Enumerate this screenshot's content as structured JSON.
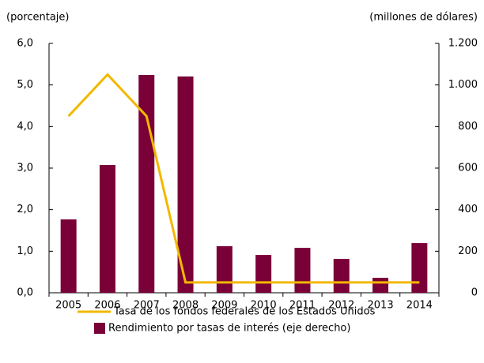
{
  "chart_data": {
    "type": "bar_line",
    "y_label": "(porcentaje)",
    "y2_label": "(millones de dólares)",
    "categories": [
      "2005",
      "2006",
      "2007",
      "2008",
      "2009",
      "2010",
      "2011",
      "2012",
      "2013",
      "2014"
    ],
    "series": [
      {
        "name": "Tasa de los fondos federales de los Estados Unidos",
        "type": "line",
        "color": "#f2b800",
        "axis": "y",
        "values": [
          4.25,
          5.25,
          4.25,
          0.25,
          0.25,
          0.25,
          0.25,
          0.25,
          0.25,
          0.25
        ]
      },
      {
        "name": "Rendimiento por tasas de interés (eje derecho)",
        "type": "bar",
        "color": "#7a0038",
        "axis": "y2",
        "values": [
          353,
          615,
          1048,
          1041,
          224,
          182,
          216,
          163,
          72,
          239
        ]
      }
    ],
    "ylim": [
      0,
      6
    ],
    "yticks": [
      {
        "value": 0,
        "label": "0,0"
      },
      {
        "value": 1,
        "label": "1,0"
      },
      {
        "value": 2,
        "label": "2,0"
      },
      {
        "value": 3,
        "label": "3,0"
      },
      {
        "value": 4,
        "label": "4,0"
      },
      {
        "value": 5,
        "label": "5,0"
      },
      {
        "value": 6,
        "label": "6,0"
      }
    ],
    "y2lim": [
      0,
      1200
    ],
    "y2ticks": [
      0,
      200,
      400,
      600,
      800,
      {
        "value": 1000,
        "label": "1.000"
      },
      {
        "value": 1200,
        "label": "1.200"
      }
    ]
  }
}
